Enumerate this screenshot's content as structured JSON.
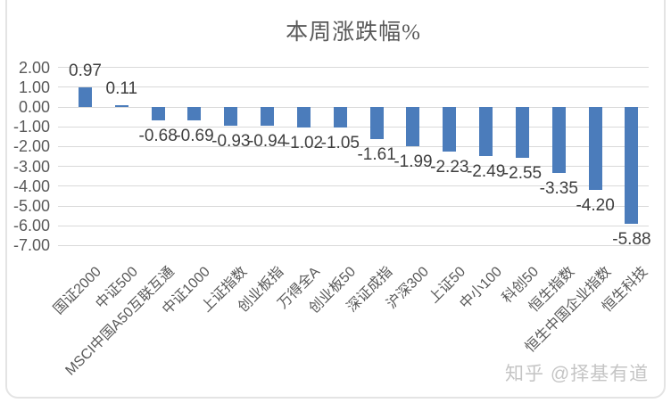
{
  "chart_data": {
    "type": "bar",
    "title": "本周涨跌幅%",
    "categories": [
      "国证2000",
      "中证500",
      "MSCI中国A50互联互通",
      "中证1000",
      "上证指数",
      "创业板指",
      "万得全A",
      "创业板50",
      "深证成指",
      "沪深300",
      "上证50",
      "中小100",
      "科创50",
      "恒生指数",
      "恒生中国企业指数",
      "恒生科技"
    ],
    "values": [
      0.97,
      0.11,
      -0.68,
      -0.69,
      -0.93,
      -0.94,
      -1.02,
      -1.05,
      -1.61,
      -1.99,
      -2.23,
      -2.49,
      -2.55,
      -3.35,
      -4.2,
      -5.88
    ],
    "value_labels": [
      "0.97",
      "0.11",
      "-0.68",
      "-0.69",
      "-0.93",
      "-0.94",
      "-1.02",
      "-1.05",
      "-1.61",
      "-1.99",
      "-2.23",
      "-2.49",
      "-2.55",
      "-3.35",
      "-4.20",
      "-5.88"
    ],
    "y_ticks": [
      "2.00",
      "1.00",
      "0.00",
      "-1.00",
      "-2.00",
      "-3.00",
      "-4.00",
      "-5.00",
      "-6.00",
      "-7.00"
    ],
    "y_tick_values": [
      2,
      1,
      0,
      -1,
      -2,
      -3,
      -4,
      -5,
      -6,
      -7
    ],
    "ylim": [
      -7,
      2
    ],
    "grid": true,
    "legend": false,
    "xlabel": "",
    "ylabel": "",
    "bar_color": "#4b7cbb",
    "watermark": "知乎 @择基有道"
  }
}
